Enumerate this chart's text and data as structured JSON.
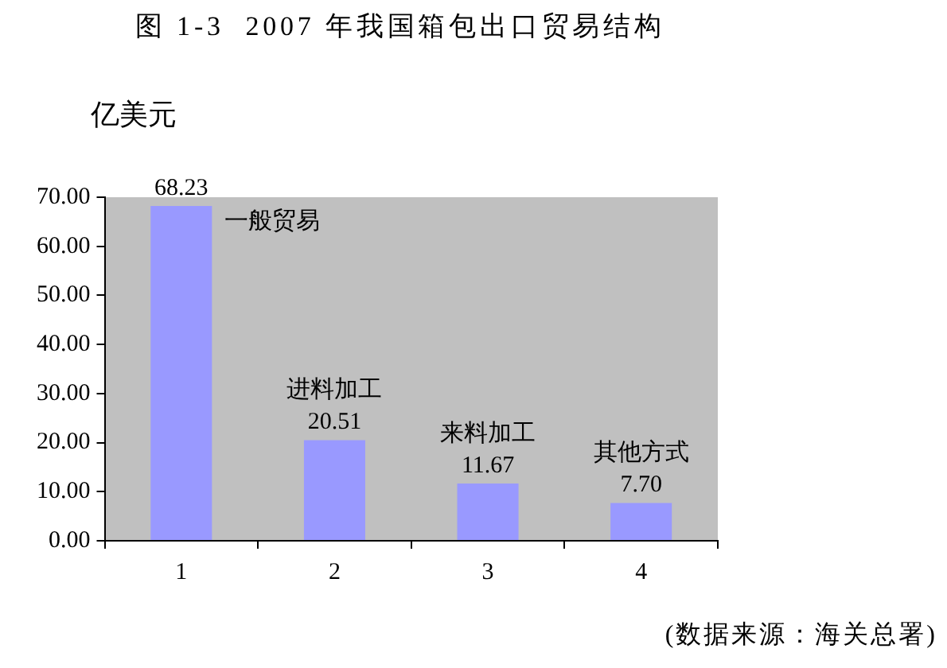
{
  "chart_data": {
    "type": "bar",
    "title": "图 1-3  2007 年我国箱包出口贸易结构",
    "ylabel": "亿美元",
    "categories": [
      "1",
      "2",
      "3",
      "4"
    ],
    "values": [
      68.23,
      20.51,
      11.67,
      7.7
    ],
    "color": "#9999ff",
    "value_labels": [
      "68.23",
      "20.51",
      "11.67",
      "7.70"
    ],
    "ylim": [
      0,
      70
    ],
    "yticks": [
      {
        "value": 0,
        "label": "0.00"
      },
      {
        "value": 10,
        "label": "10.00"
      },
      {
        "value": 20,
        "label": "20.00"
      },
      {
        "value": 30,
        "label": "30.00"
      },
      {
        "value": 40,
        "label": "40.00"
      },
      {
        "value": 50,
        "label": "50.00"
      },
      {
        "value": 60,
        "label": "60.00"
      },
      {
        "value": 70,
        "label": "70.00"
      }
    ],
    "annotations": [
      {
        "text": "一般贸易",
        "x": "1",
        "y": 68.23
      },
      {
        "text": "进料加工",
        "x": "2",
        "y": 20.51
      },
      {
        "text": "来料加工",
        "x": "3",
        "y": 11.67
      },
      {
        "text": "其他方式",
        "x": "4",
        "y": 7.7
      },
      "(数据来源：海关总署)"
    ]
  }
}
